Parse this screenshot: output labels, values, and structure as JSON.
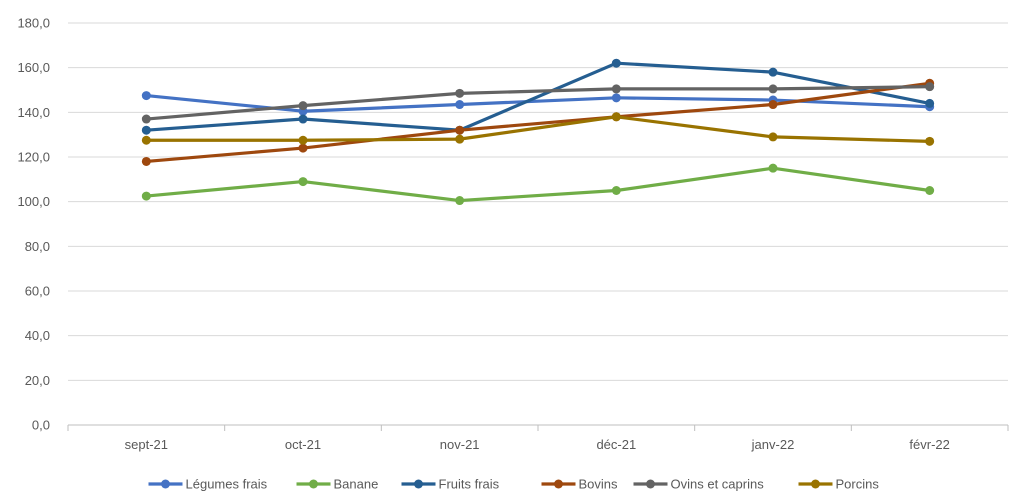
{
  "chart_data": {
    "type": "line",
    "title": "",
    "xlabel": "",
    "ylabel": "",
    "categories": [
      "sept-21",
      "oct-21",
      "nov-21",
      "déc-21",
      "janv-22",
      "févr-22"
    ],
    "ylim": [
      0,
      180
    ],
    "yticks": [
      0,
      20,
      40,
      60,
      80,
      100,
      120,
      140,
      160,
      180
    ],
    "yticks_labels": [
      "0,0",
      "20,0",
      "40,0",
      "60,0",
      "80,0",
      "100,0",
      "120,0",
      "140,0",
      "160,0",
      "180,0"
    ],
    "grid": true,
    "legend_position": "bottom",
    "series": [
      {
        "name": "Légumes frais",
        "color": "#4472C4",
        "values": [
          147.5,
          140.5,
          143.5,
          146.5,
          145.5,
          142.5
        ]
      },
      {
        "name": "Banane",
        "color": "#70AD47",
        "values": [
          102.5,
          109.0,
          100.5,
          105.0,
          115.0,
          105.0
        ]
      },
      {
        "name": "Fruits frais",
        "color": "#255E91",
        "values": [
          132.0,
          137.0,
          132.0,
          162.0,
          158.0,
          144.0
        ]
      },
      {
        "name": "Bovins",
        "color": "#9E480E",
        "values": [
          118.0,
          124.0,
          132.0,
          138.0,
          143.5,
          153.0
        ]
      },
      {
        "name": "Ovins et caprins",
        "color": "#636363",
        "values": [
          137.0,
          143.0,
          148.5,
          150.5,
          150.5,
          151.5
        ]
      },
      {
        "name": "Porcins",
        "color": "#997300",
        "values": [
          127.5,
          127.5,
          128.0,
          138.0,
          129.0,
          127.0
        ]
      }
    ]
  }
}
